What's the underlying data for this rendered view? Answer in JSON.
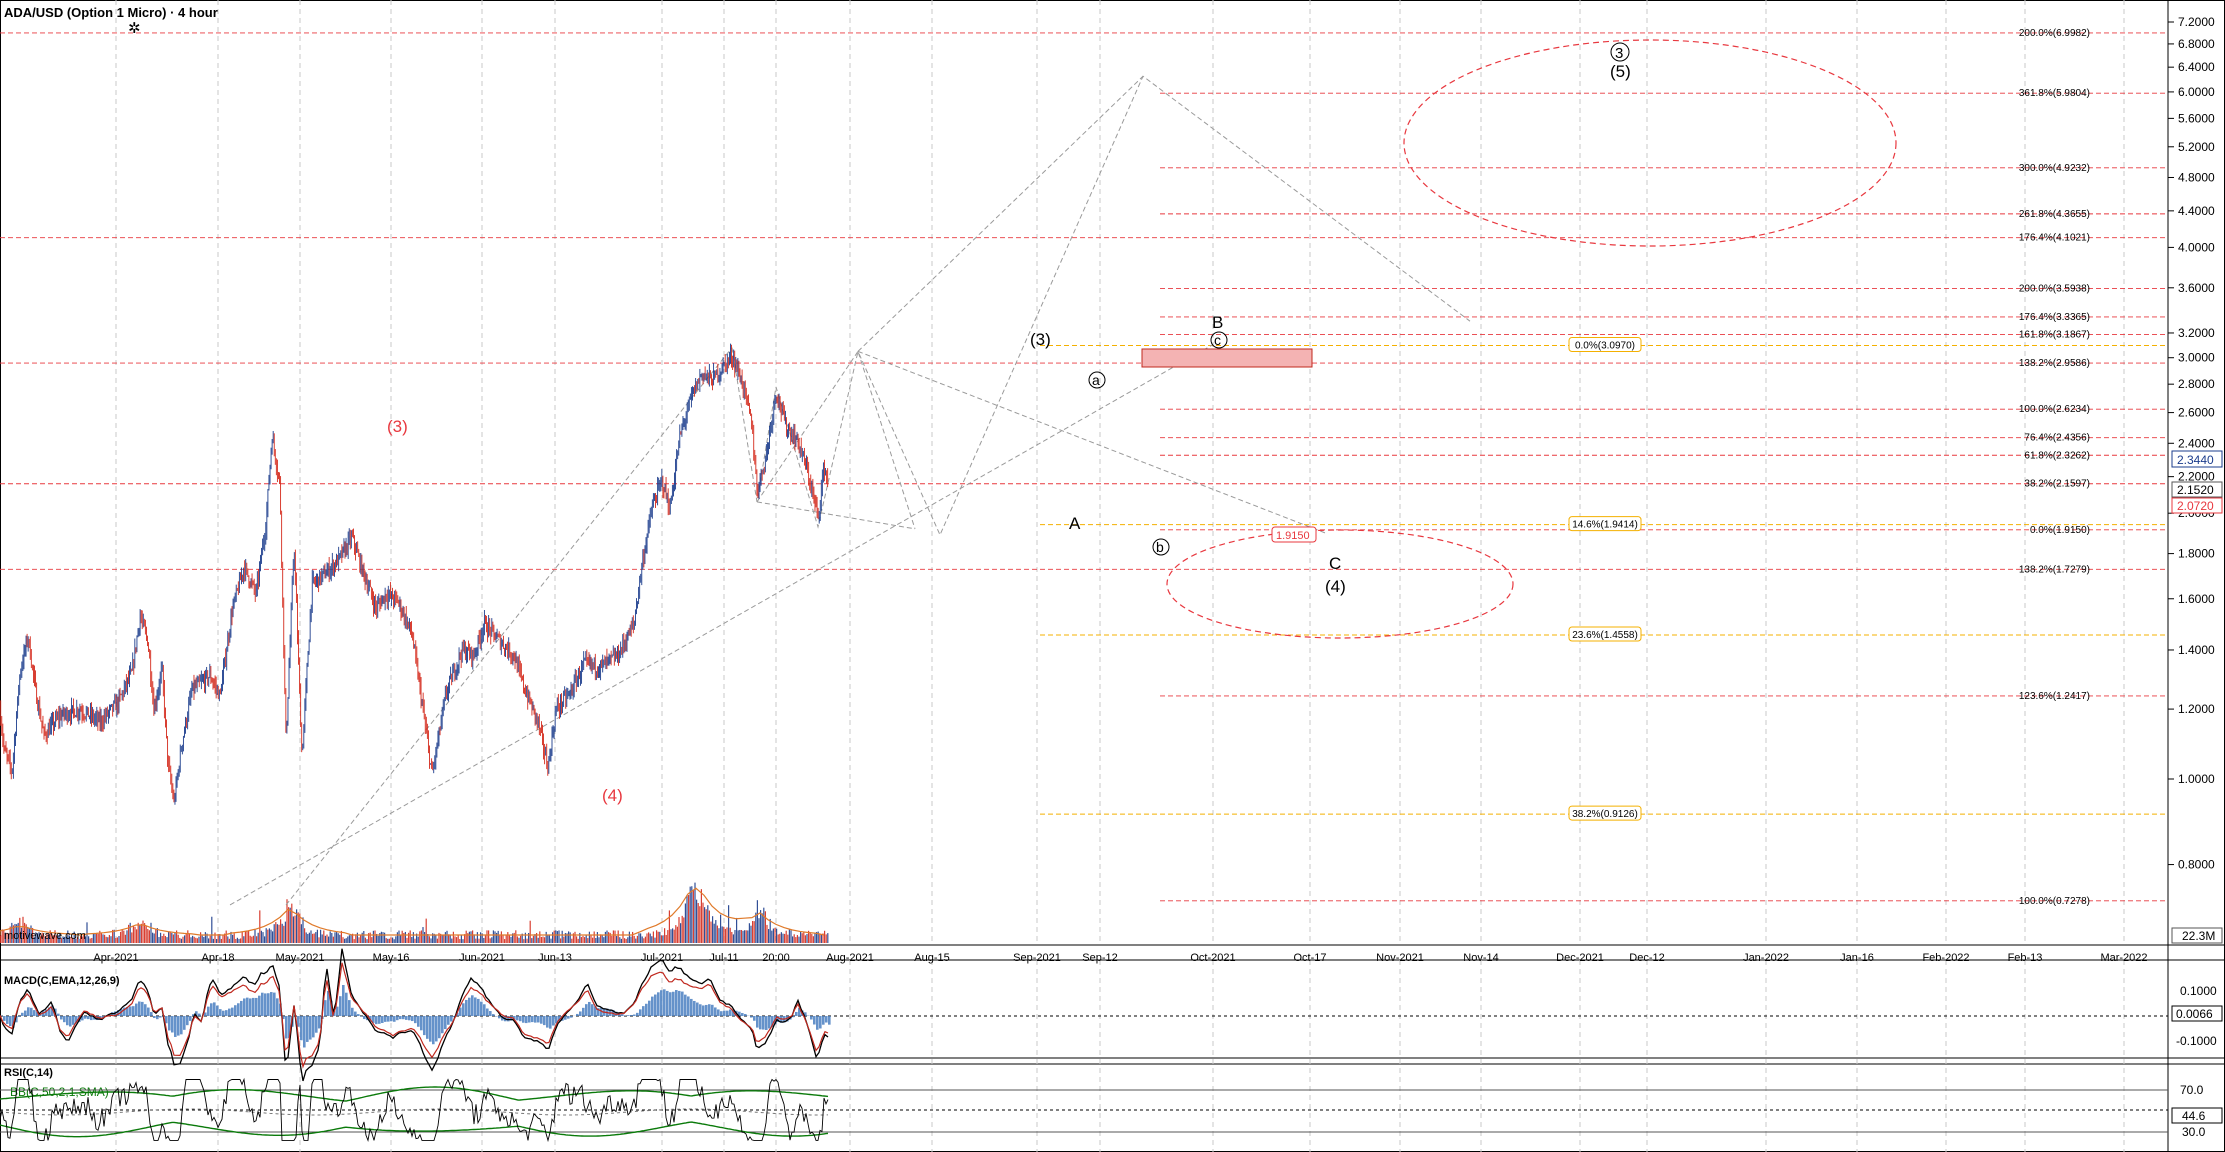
{
  "header": {
    "title": "ADA/USD (Option 1 Micro) · 4 hour",
    "gear_icon": "gear-icon",
    "watermark": "motivewave.com"
  },
  "colors": {
    "grid": "#c8c8c8",
    "fib_red": "#e8383f",
    "fib_orange": "#f4b000",
    "candle_up": "#1b3c8c",
    "candle_down": "#d42a1c",
    "macd_line": "#000000",
    "macd_signal": "#c0281e",
    "macd_hist": "#4a7fc1",
    "rsi_line": "#000000",
    "bollinger": "#0a7a0a",
    "ellipse": "#e8383f",
    "projection": "#9a9a9a",
    "price_box": "#f4b3b3"
  },
  "price_axis": {
    "labels": [
      "7.2000",
      "6.8000",
      "6.4000",
      "6.0000",
      "5.6000",
      "5.2000",
      "4.8000",
      "4.4000",
      "4.0000",
      "3.6000",
      "3.2000",
      "3.0000",
      "2.8000",
      "2.6000",
      "2.4000",
      "2.2000",
      "2.0000",
      "1.8000",
      "1.6000",
      "1.4000",
      "1.2000",
      "1.0000",
      "0.8000"
    ],
    "current_price": "2.3440",
    "price_tag_2": "2.1520",
    "price_tag_3": "2.0720",
    "volume_label": "22.3M"
  },
  "time_axis": {
    "labels": [
      "Apr-2021",
      "Apr-18",
      "May-2021",
      "May-16",
      "Jun-2021",
      "Jun-13",
      "Jul-2021",
      "Jul-11",
      "20:00",
      "Aug-2021",
      "Aug-15",
      "Sep-2021",
      "Sep-12",
      "Oct-2021",
      "Oct-17",
      "Nov-2021",
      "Nov-14",
      "Dec-2021",
      "Dec-12",
      "Jan-2022",
      "Jan-16",
      "Feb-2022",
      "Feb-13",
      "Mar-2022"
    ]
  },
  "fib_levels": {
    "red": [
      {
        "label": "200.0%(6.9982)",
        "price": 6.9982
      },
      {
        "label": "361.8%(5.9804)",
        "price": 5.9804
      },
      {
        "label": "300.0%(4.9232)",
        "price": 4.9232
      },
      {
        "label": "261.8%(4.3655)",
        "price": 4.3655
      },
      {
        "label": "176.4%(4.1021)",
        "price": 4.1021
      },
      {
        "label": "200.0%(3.5938)",
        "price": 3.5938
      },
      {
        "label": "176.4%(3.3365)",
        "price": 3.3365
      },
      {
        "label": "161.8%(3.1867)",
        "price": 3.1867
      },
      {
        "label": "138.2%(2.9586)",
        "price": 2.9586
      },
      {
        "label": "100.0%(2.6234)",
        "price": 2.6234
      },
      {
        "label": "76.4%(2.4356)",
        "price": 2.4356
      },
      {
        "label": "61.8%(2.3262)",
        "price": 2.3262
      },
      {
        "label": "38.2%(2.1597)",
        "price": 2.1597
      },
      {
        "label": "0.0%(1.9150)",
        "price": 1.915
      },
      {
        "label": "138.2%(1.7279)",
        "price": 1.7279
      },
      {
        "label": "123.6%(1.2417)",
        "price": 1.2417
      },
      {
        "label": "100.0%(0.7278)",
        "price": 0.7278
      }
    ],
    "orange": [
      {
        "label": "0.0%(3.0970)",
        "price": 3.097
      },
      {
        "label": "14.6%(1.9414)",
        "price": 1.9414
      },
      {
        "label": "23.6%(1.4558)",
        "price": 1.4558
      },
      {
        "label": "38.2%(0.9126)",
        "price": 0.9126
      }
    ],
    "marker_1915": "1.9150"
  },
  "wave_labels": {
    "red_3": "(3)",
    "red_4": "(4)",
    "black_3": "(3)",
    "a_circle": "a",
    "b_circle": "b",
    "c_circle": "c",
    "A": "A",
    "B": "B",
    "C": "C",
    "paren_4": "(4)",
    "circle_3": "3",
    "paren_5": "(5)"
  },
  "macd": {
    "title": "MACD(C,EMA,12,26,9)",
    "axis_labels": [
      "0.1000",
      "0.0066",
      "-0.1000"
    ]
  },
  "rsi": {
    "title": "RSI(C,14)",
    "bollinger_title": "BB(C,50,2,1,SMA)",
    "axis_labels": [
      "70.0",
      "44.6",
      "30.0"
    ]
  },
  "chart_data": {
    "type": "candlestick",
    "title": "ADA/USD (Option 1 Micro) · 4 hour",
    "ylim": [
      0.72,
      7.4
    ],
    "y_scale": "log",
    "price_path": [
      [
        0,
        1.2
      ],
      [
        4,
        1.08
      ],
      [
        12,
        1.02
      ],
      [
        20,
        1.32
      ],
      [
        28,
        1.45
      ],
      [
        36,
        1.25
      ],
      [
        44,
        1.12
      ],
      [
        60,
        1.18
      ],
      [
        80,
        1.2
      ],
      [
        100,
        1.16
      ],
      [
        118,
        1.22
      ],
      [
        132,
        1.32
      ],
      [
        140,
        1.53
      ],
      [
        148,
        1.43
      ],
      [
        154,
        1.2
      ],
      [
        162,
        1.33
      ],
      [
        168,
        1.04
      ],
      [
        174,
        0.94
      ],
      [
        182,
        1.1
      ],
      [
        192,
        1.26
      ],
      [
        210,
        1.31
      ],
      [
        220,
        1.24
      ],
      [
        232,
        1.55
      ],
      [
        244,
        1.74
      ],
      [
        256,
        1.62
      ],
      [
        266,
        1.95
      ],
      [
        272,
        2.45
      ],
      [
        280,
        2.15
      ],
      [
        286,
        1.1
      ],
      [
        294,
        1.85
      ],
      [
        302,
        1.06
      ],
      [
        312,
        1.66
      ],
      [
        328,
        1.72
      ],
      [
        340,
        1.78
      ],
      [
        352,
        1.88
      ],
      [
        362,
        1.73
      ],
      [
        376,
        1.56
      ],
      [
        386,
        1.62
      ],
      [
        398,
        1.59
      ],
      [
        412,
        1.46
      ],
      [
        422,
        1.22
      ],
      [
        432,
        1.01
      ],
      [
        446,
        1.25
      ],
      [
        462,
        1.4
      ],
      [
        474,
        1.38
      ],
      [
        484,
        1.5
      ],
      [
        498,
        1.44
      ],
      [
        514,
        1.38
      ],
      [
        524,
        1.27
      ],
      [
        538,
        1.16
      ],
      [
        548,
        1.03
      ],
      [
        556,
        1.2
      ],
      [
        570,
        1.25
      ],
      [
        584,
        1.35
      ],
      [
        600,
        1.34
      ],
      [
        618,
        1.38
      ],
      [
        634,
        1.5
      ],
      [
        642,
        1.75
      ],
      [
        652,
        2.03
      ],
      [
        662,
        2.18
      ],
      [
        670,
        2.02
      ],
      [
        680,
        2.45
      ],
      [
        692,
        2.72
      ],
      [
        702,
        2.88
      ],
      [
        712,
        2.83
      ],
      [
        722,
        2.92
      ],
      [
        732,
        3.02
      ],
      [
        742,
        2.82
      ],
      [
        752,
        2.52
      ],
      [
        757,
        2.12
      ],
      [
        766,
        2.32
      ],
      [
        776,
        2.75
      ],
      [
        786,
        2.51
      ],
      [
        798,
        2.41
      ],
      [
        808,
        2.22
      ],
      [
        818,
        1.98
      ],
      [
        824,
        2.26
      ],
      [
        828,
        2.18
      ]
    ],
    "volume_peaks": [
      [
        20,
        0.25
      ],
      [
        140,
        0.3
      ],
      [
        290,
        0.7
      ],
      [
        692,
        0.85
      ],
      [
        700,
        0.55
      ],
      [
        760,
        0.55
      ]
    ],
    "waves": {
      "main_projection": [
        [
          757,
          2.06
        ],
        [
          858,
          3.05
        ],
        [
          940,
          1.89
        ],
        [
          1143,
          6.25
        ],
        [
          1470,
          3.3
        ]
      ],
      "corrective": [
        [
          732,
          3.08
        ],
        [
          757,
          2.06
        ],
        [
          776,
          2.78
        ],
        [
          818,
          1.93
        ],
        [
          858,
          3.05
        ],
        [
          915,
          1.92
        ]
      ]
    }
  }
}
